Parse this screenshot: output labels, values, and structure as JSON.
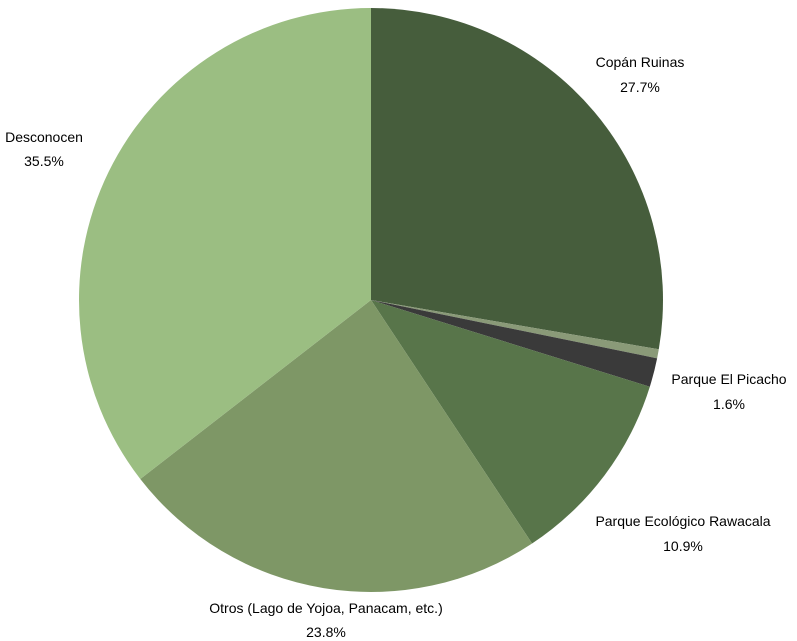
{
  "chart_data": {
    "type": "pie",
    "title": "",
    "start": "12 o'clock",
    "direction": "clockwise",
    "slices": [
      {
        "label": "Copán Ruinas",
        "value": 27.7,
        "value_label": "27.7%",
        "color": "#465d3c"
      },
      {
        "label": "",
        "value": 0.5,
        "value_label": "",
        "color": "#8a9a78"
      },
      {
        "label": "Parque El Picacho",
        "value": 1.6,
        "value_label": "1.6%",
        "color": "#3a3a3a"
      },
      {
        "label": "Parque Ecológico Rawacala",
        "value": 10.9,
        "value_label": "10.9%",
        "color": "#58754a"
      },
      {
        "label": "Otros (Lago de Yojoa, Panacam, etc.)",
        "value": 23.8,
        "value_label": "23.8%",
        "color": "#7e9766"
      },
      {
        "label": "Desconocen",
        "value": 35.5,
        "value_label": "35.5%",
        "color": "#9bbe82"
      }
    ]
  }
}
